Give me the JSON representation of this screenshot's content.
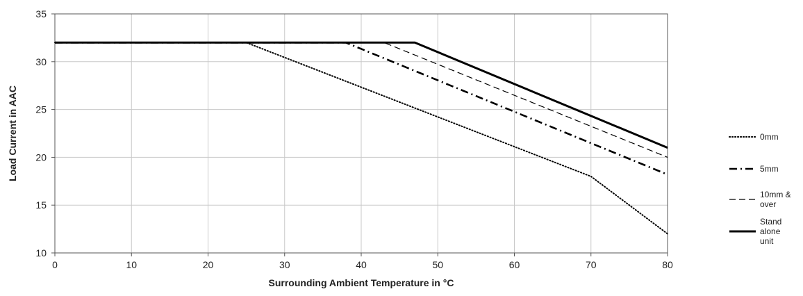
{
  "chart_data": {
    "type": "line",
    "xlabel": "Surrounding Ambient Temperature in °C",
    "ylabel": "Load Current in AAC",
    "xlim": [
      0,
      80
    ],
    "ylim": [
      10,
      35
    ],
    "xticks": [
      0,
      10,
      20,
      30,
      40,
      50,
      60,
      70,
      80
    ],
    "yticks": [
      10,
      15,
      20,
      25,
      30,
      35
    ],
    "grid": true,
    "legend_position": "right",
    "series": [
      {
        "name": "0mm",
        "style": "dotted",
        "color": "#000000",
        "x": [
          0,
          25,
          70,
          80
        ],
        "y": [
          32,
          32,
          18,
          12
        ]
      },
      {
        "name": "5mm",
        "style": "dash-dot",
        "color": "#000000",
        "x": [
          0,
          38,
          80
        ],
        "y": [
          32,
          32,
          18.2
        ]
      },
      {
        "name": "10mm & over",
        "style": "dashed",
        "color": "#000000",
        "x": [
          0,
          43,
          80
        ],
        "y": [
          32,
          32,
          20
        ]
      },
      {
        "name": "Stand alone unit",
        "style": "solid-thick",
        "color": "#000000",
        "x": [
          0,
          47,
          80
        ],
        "y": [
          32,
          32,
          21
        ]
      }
    ]
  }
}
